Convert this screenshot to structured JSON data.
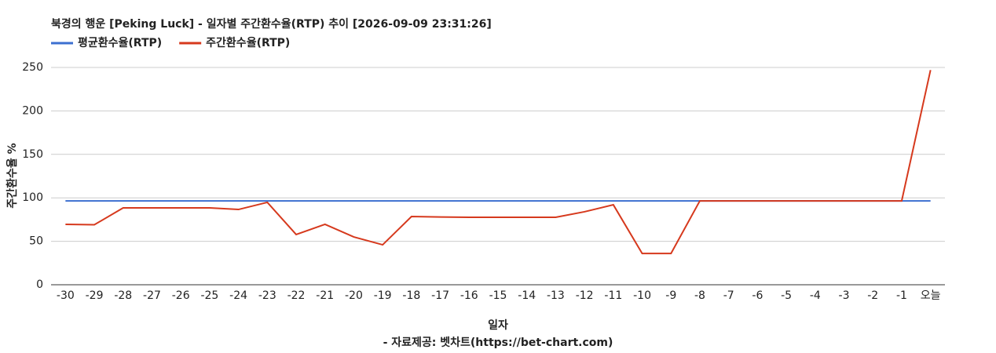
{
  "chart_data": {
    "type": "line",
    "title": "북경의 행운 [Peking Luck] - 일자별 주간환수율(RTP) 추이 [2026-09-09 23:31:26]",
    "x_label": "일자",
    "y_label": "주간환수율 %",
    "footer": "- 자료제공: 벳차트(https://bet-chart.com)",
    "categories": [
      "-30",
      "-29",
      "-28",
      "-27",
      "-26",
      "-25",
      "-24",
      "-23",
      "-22",
      "-21",
      "-20",
      "-19",
      "-18",
      "-17",
      "-16",
      "-15",
      "-14",
      "-13",
      "-12",
      "-11",
      "-10",
      "-9",
      "-8",
      "-7",
      "-6",
      "-5",
      "-4",
      "-3",
      "-2",
      "-1",
      "오늘"
    ],
    "series": [
      {
        "name": "평균환수율(RTP)",
        "color": "#3c6fd0",
        "values": [
          96.5,
          96.5,
          96.5,
          96.5,
          96.5,
          96.5,
          96.5,
          96.5,
          96.5,
          96.5,
          96.5,
          96.5,
          96.5,
          96.5,
          96.5,
          96.5,
          96.5,
          96.5,
          96.5,
          96.5,
          96.5,
          96.5,
          96.5,
          96.5,
          96.5,
          96.5,
          96.5,
          96.5,
          96.5,
          96.5,
          96.5
        ]
      },
      {
        "name": "주간환수율(RTP)",
        "color": "#d6391d",
        "values": [
          69.5,
          69,
          88.4,
          88.4,
          88.4,
          88.4,
          86.6,
          94.8,
          57.8,
          69.5,
          55,
          46,
          78.5,
          78,
          77.6,
          77.6,
          77.6,
          77.6,
          84,
          92,
          36,
          36,
          96.5,
          96.5,
          96.5,
          96.5,
          96.5,
          96.5,
          96.5,
          96.5,
          247
        ]
      }
    ],
    "ylim": [
      0,
      250
    ],
    "yticks": [
      0,
      50,
      100,
      150,
      200,
      250
    ],
    "grid": true
  }
}
